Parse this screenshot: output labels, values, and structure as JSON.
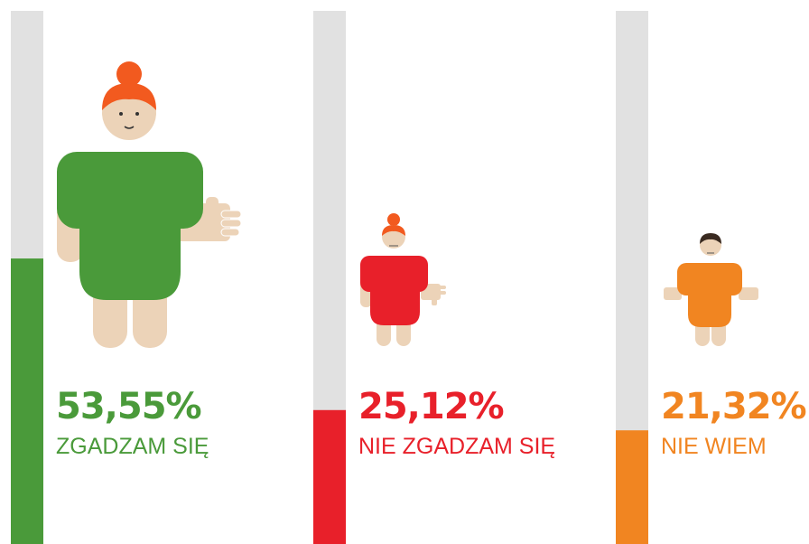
{
  "chart_data": {
    "type": "bar",
    "categories": [
      "ZGADZAM SIĘ",
      "NIE ZGADZAM SIĘ",
      "NIE WIEM"
    ],
    "values": [
      53.55,
      25.12,
      21.32
    ],
    "value_labels": [
      "53,55%",
      "25,12%",
      "21,32%"
    ],
    "colors": [
      "#4a9a3a",
      "#e8202a",
      "#f18521"
    ],
    "ylim": [
      0,
      100
    ]
  }
}
